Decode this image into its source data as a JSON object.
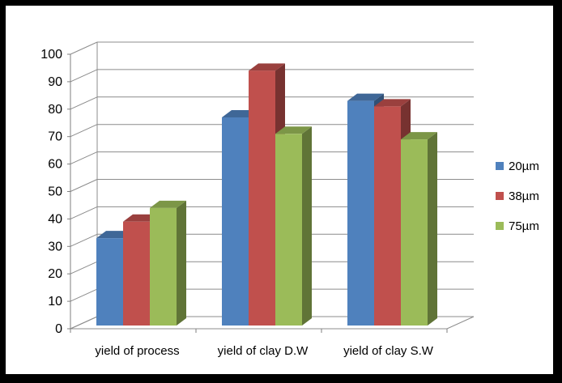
{
  "chart_data": {
    "type": "bar",
    "categories": [
      "yield of process",
      "yield of clay D.W",
      "yield of clay S.W"
    ],
    "series": [
      {
        "name": "20µm",
        "values": [
          33,
          77,
          83
        ],
        "color": "#4F81BD"
      },
      {
        "name": "38µm",
        "values": [
          39,
          94,
          81
        ],
        "color": "#C0504D"
      },
      {
        "name": "75µm",
        "values": [
          44,
          71,
          69
        ],
        "color": "#9BBB59"
      }
    ],
    "yticks": [
      0,
      10,
      20,
      30,
      40,
      50,
      60,
      70,
      80,
      90,
      100
    ],
    "ylim": [
      0,
      100
    ],
    "grid": true,
    "legend_position": "right",
    "style": "3d-column"
  }
}
